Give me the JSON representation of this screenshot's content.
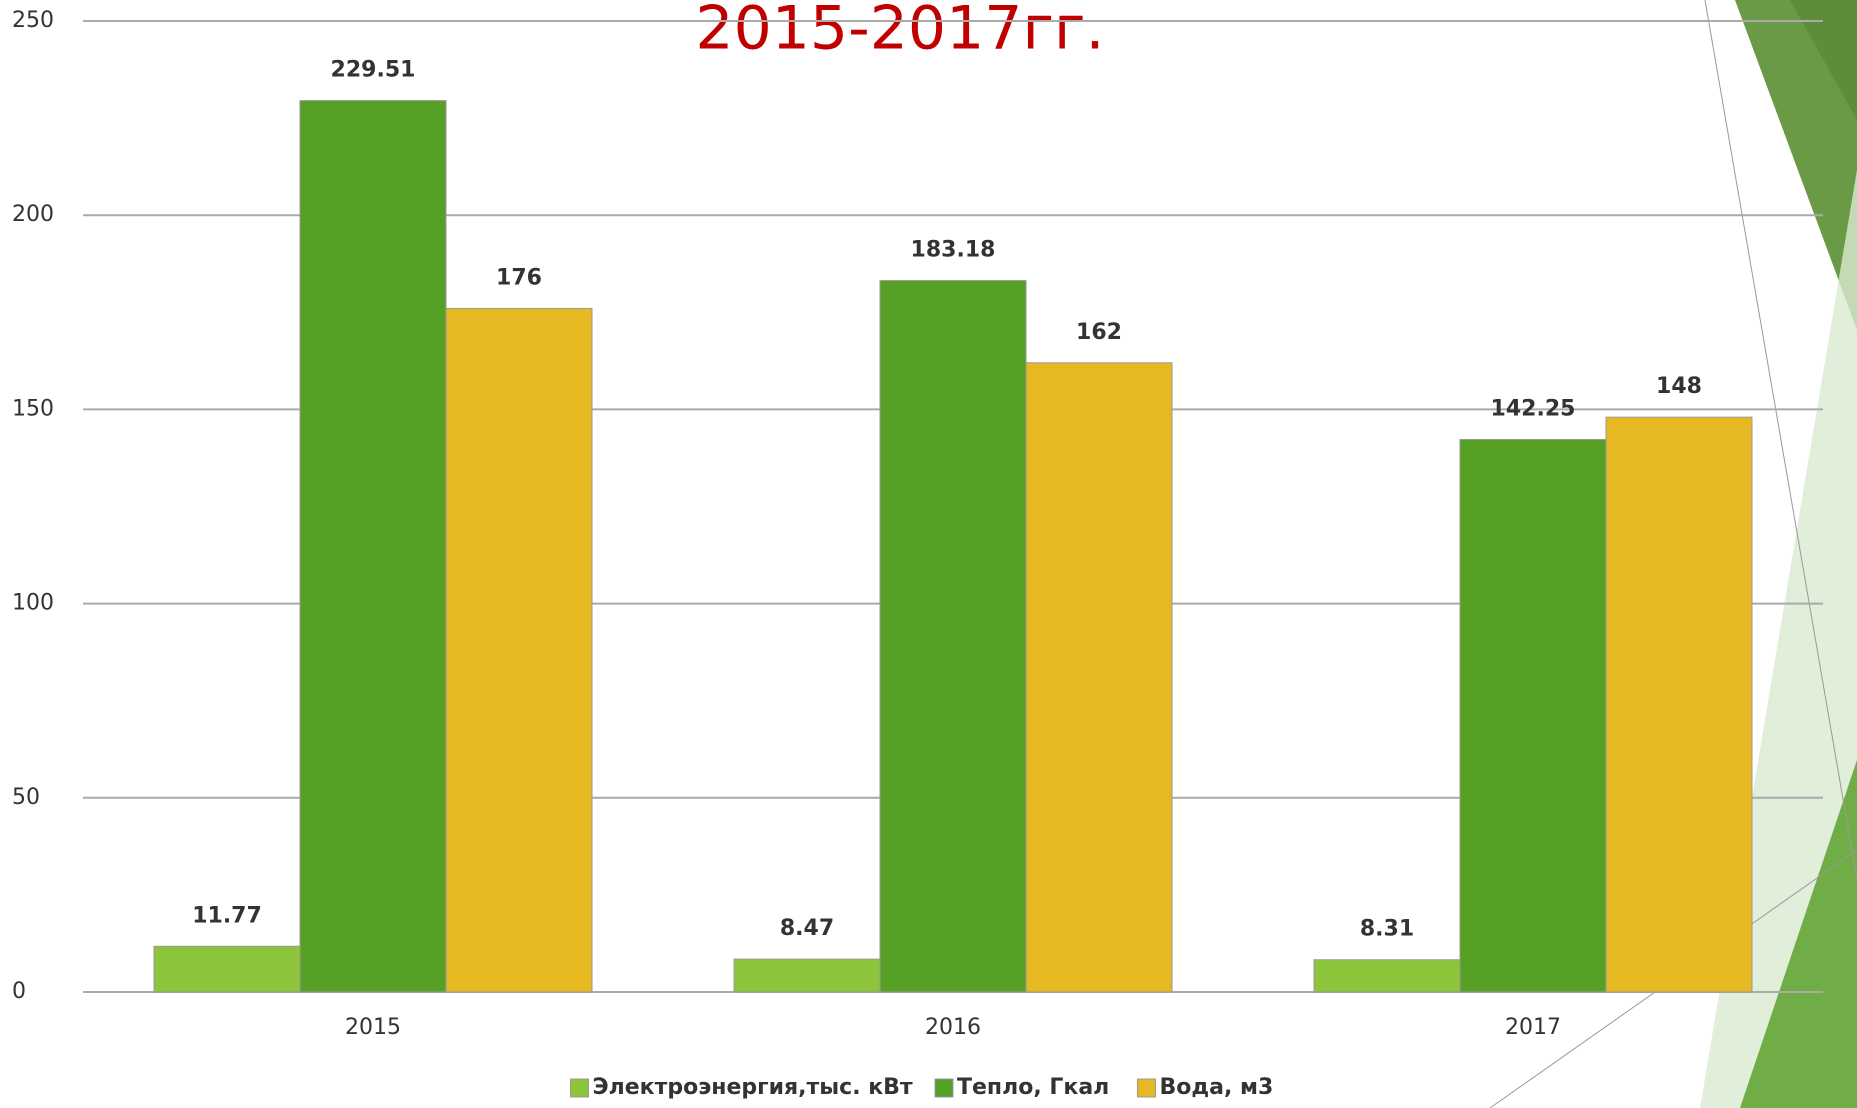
{
  "chart_data": {
    "type": "bar",
    "title": "2015-2017гг.",
    "categories": [
      "2015",
      "2016",
      "2017"
    ],
    "series": [
      {
        "name": "Электроэнергия,тыс. кВт",
        "color": "#8cc43a",
        "values": [
          11.77,
          8.47,
          8.31
        ]
      },
      {
        "name": "Тепло, Гкал",
        "color": "#56a026",
        "values": [
          229.51,
          183.18,
          142.25
        ]
      },
      {
        "name": "Вода, м3",
        "color": "#e6b922",
        "values": [
          176,
          162,
          148
        ]
      }
    ],
    "ylim": [
      0,
      250
    ],
    "yticks": [
      0,
      50,
      100,
      150,
      200,
      250
    ],
    "grid": true,
    "legend": "bottom"
  }
}
